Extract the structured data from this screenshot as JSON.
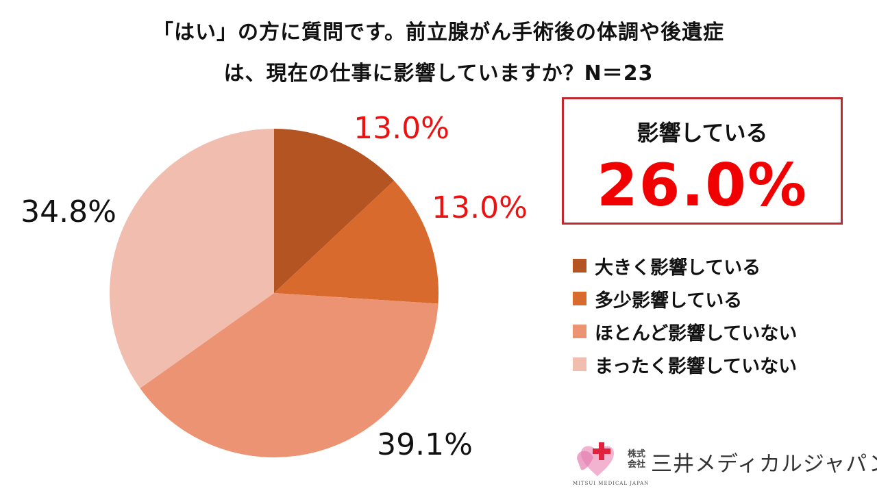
{
  "chart_data": {
    "type": "pie",
    "title_lines": [
      "「はい」の方に質問です。前立腺がん手術後の体調や後遺症",
      "は、現在の仕事に影響していますか？N＝23"
    ],
    "slices": [
      {
        "name": "大きく影響している",
        "value": 13.0,
        "label": "13.0%",
        "color": "#b55423",
        "label_color": "#ee1111"
      },
      {
        "name": "多少影響している",
        "value": 13.0,
        "label": "13.0%",
        "color": "#d96a2e",
        "label_color": "#ee1111"
      },
      {
        "name": "ほとんど影響していない",
        "value": 39.1,
        "label": "39.1%",
        "color": "#ec9374",
        "label_color": "#111111"
      },
      {
        "name": "まったく影響していない",
        "value": 34.8,
        "label": "34.8%",
        "color": "#f1bdae",
        "label_color": "#111111"
      }
    ],
    "legend_position": "right"
  },
  "highlight": {
    "label": "影響している",
    "value": "26.0%"
  },
  "logo": {
    "small": "株式会社",
    "name": "三井メディカルジャパン",
    "sub": "MITSUI MEDICAL JAPAN"
  }
}
